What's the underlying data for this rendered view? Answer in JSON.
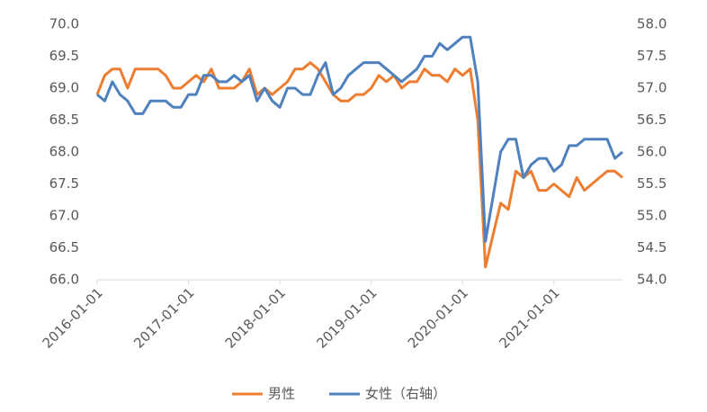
{
  "chart_data": {
    "type": "line",
    "x": [
      "2016-01-01",
      "2016-02-01",
      "2016-03-01",
      "2016-04-01",
      "2016-05-01",
      "2016-06-01",
      "2016-07-01",
      "2016-08-01",
      "2016-09-01",
      "2016-10-01",
      "2016-11-01",
      "2016-12-01",
      "2017-01-01",
      "2017-02-01",
      "2017-03-01",
      "2017-04-01",
      "2017-05-01",
      "2017-06-01",
      "2017-07-01",
      "2017-08-01",
      "2017-09-01",
      "2017-10-01",
      "2017-11-01",
      "2017-12-01",
      "2018-01-01",
      "2018-02-01",
      "2018-03-01",
      "2018-04-01",
      "2018-05-01",
      "2018-06-01",
      "2018-07-01",
      "2018-08-01",
      "2018-09-01",
      "2018-10-01",
      "2018-11-01",
      "2018-12-01",
      "2019-01-01",
      "2019-02-01",
      "2019-03-01",
      "2019-04-01",
      "2019-05-01",
      "2019-06-01",
      "2019-07-01",
      "2019-08-01",
      "2019-09-01",
      "2019-10-01",
      "2019-11-01",
      "2019-12-01",
      "2020-01-01",
      "2020-02-01",
      "2020-03-01",
      "2020-04-01",
      "2020-05-01",
      "2020-06-01",
      "2020-07-01",
      "2020-08-01",
      "2020-09-01",
      "2020-10-01",
      "2020-11-01",
      "2020-12-01",
      "2021-01-01",
      "2021-02-01",
      "2021-03-01",
      "2021-04-01",
      "2021-05-01",
      "2021-06-01",
      "2021-07-01",
      "2021-08-01",
      "2021-09-01",
      "2021-10-01"
    ],
    "xticks": [
      "2016-01-01",
      "2017-01-01",
      "2018-01-01",
      "2019-01-01",
      "2020-01-01",
      "2021-01-01"
    ],
    "series": [
      {
        "name": "男性",
        "color": "#ED7D31",
        "values": [
          68.9,
          69.2,
          69.3,
          69.3,
          69.0,
          69.3,
          69.3,
          69.3,
          69.3,
          69.2,
          69.0,
          69.0,
          69.1,
          69.2,
          69.1,
          69.3,
          69.0,
          69.0,
          69.0,
          69.1,
          69.3,
          68.9,
          69.0,
          68.9,
          69.0,
          69.1,
          69.3,
          69.3,
          69.4,
          69.3,
          69.1,
          68.9,
          68.8,
          68.8,
          68.9,
          68.9,
          69.0,
          69.2,
          69.1,
          69.2,
          69.0,
          69.1,
          69.1,
          69.3,
          69.2,
          69.2,
          69.1,
          69.3,
          69.2,
          69.3,
          68.5,
          66.2,
          66.7,
          67.2,
          67.1,
          67.7,
          67.6,
          67.7,
          67.4,
          67.4,
          67.5,
          67.4,
          67.3,
          67.6,
          67.4,
          67.5,
          67.6,
          67.7,
          67.7,
          67.6
        ]
      },
      {
        "name": "女性（右轴）",
        "color": "#4E81BD",
        "axis": "y2",
        "values": [
          56.9,
          56.8,
          57.1,
          56.9,
          56.8,
          56.6,
          56.6,
          56.8,
          56.8,
          56.8,
          56.7,
          56.7,
          56.9,
          56.9,
          57.2,
          57.2,
          57.1,
          57.1,
          57.2,
          57.1,
          57.2,
          56.8,
          57.0,
          56.8,
          56.7,
          57.0,
          57.0,
          56.9,
          56.9,
          57.2,
          57.4,
          56.9,
          57.0,
          57.2,
          57.3,
          57.4,
          57.4,
          57.4,
          57.3,
          57.2,
          57.1,
          57.2,
          57.3,
          57.5,
          57.5,
          57.7,
          57.6,
          57.7,
          57.8,
          57.8,
          57.1,
          54.6,
          55.3,
          56.0,
          56.2,
          56.2,
          55.6,
          55.8,
          55.9,
          55.9,
          55.7,
          55.8,
          56.1,
          56.1,
          56.2,
          56.2,
          56.2,
          56.2,
          55.9,
          56.0
        ]
      }
    ],
    "ylim": [
      66,
      70
    ],
    "yticks": [
      {
        "value": 66,
        "label": "66.0"
      },
      {
        "value": 66.5,
        "label": "66.5"
      },
      {
        "value": 67,
        "label": "67.0"
      },
      {
        "value": 67.5,
        "label": "67.5"
      },
      {
        "value": 68,
        "label": "68.0"
      },
      {
        "value": 68.5,
        "label": "68.5"
      },
      {
        "value": 69,
        "label": "69.0"
      },
      {
        "value": 69.5,
        "label": "69.5"
      },
      {
        "value": 70,
        "label": "70.0"
      }
    ],
    "y2lim": [
      54,
      58
    ],
    "y2ticks": [
      {
        "value": 54,
        "label": "54.0"
      },
      {
        "value": 54.5,
        "label": "54.5"
      },
      {
        "value": 55,
        "label": "55.0"
      },
      {
        "value": 55.5,
        "label": "55.5"
      },
      {
        "value": 56,
        "label": "56.0"
      },
      {
        "value": 56.5,
        "label": "56.5"
      },
      {
        "value": 57,
        "label": "57.0"
      },
      {
        "value": 57.5,
        "label": "57.5"
      },
      {
        "value": 58,
        "label": "58.0"
      }
    ],
    "legend": "bottom"
  }
}
